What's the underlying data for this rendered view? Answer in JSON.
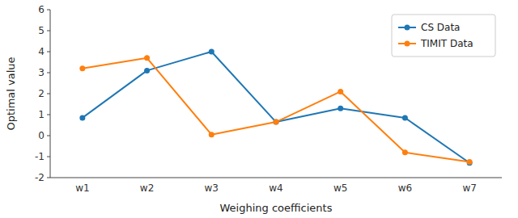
{
  "chart_data": {
    "type": "line",
    "categories": [
      "w1",
      "w2",
      "w3",
      "w4",
      "w5",
      "w6",
      "w7"
    ],
    "series": [
      {
        "name": "CS Data",
        "color": "#1f77b4",
        "values": [
          0.85,
          3.1,
          4.0,
          0.65,
          1.3,
          0.85,
          -1.3
        ]
      },
      {
        "name": "TIMIT Data",
        "color": "#ff7f0e",
        "values": [
          3.2,
          3.7,
          0.05,
          0.65,
          2.1,
          -0.8,
          -1.25
        ]
      }
    ],
    "xlabel": "Weighing coefficients",
    "ylabel": "Optimal value",
    "ylim": [
      -2,
      6
    ],
    "yticks": [
      -2,
      -1,
      0,
      1,
      2,
      3,
      4,
      5,
      6
    ],
    "marker": "circle",
    "legend": "upper right",
    "grid": false
  }
}
